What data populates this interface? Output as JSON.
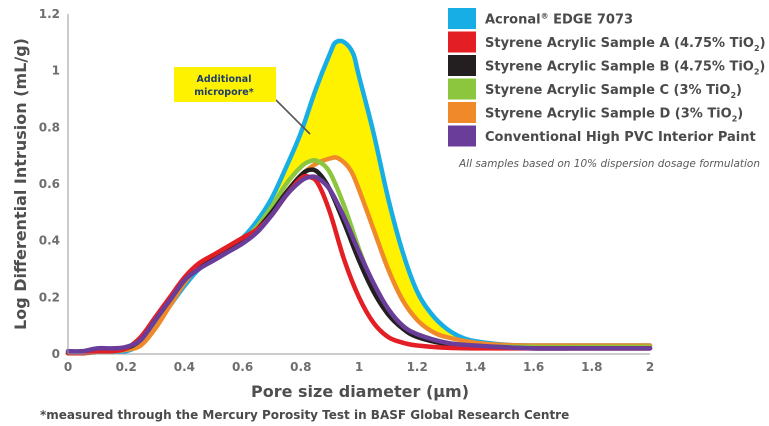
{
  "chart_data": {
    "type": "line",
    "ylabel": "Log Differential Intrusion (mL/g)",
    "xlabel": "Pore size diameter (µm)",
    "xlim": [
      0,
      2
    ],
    "ylim": [
      0,
      1.2
    ],
    "xticks": [
      0,
      0.2,
      0.4,
      0.6,
      0.8,
      1,
      1.2,
      1.4,
      1.6,
      1.8,
      2
    ],
    "yticks": [
      0,
      0.2,
      0.4,
      0.6,
      0.8,
      1,
      1.2
    ],
    "xtick_labels": [
      "0",
      "0.2",
      "0.4",
      "0.6",
      "0.8",
      "1",
      "1.2",
      "1.4",
      "1.6",
      "1.8",
      "2"
    ],
    "ytick_labels": [
      "0",
      "0.2",
      "0.4",
      "0.6",
      "0.8",
      "1",
      "1.2"
    ],
    "grid": false,
    "legend_position": "top-right",
    "filled_region": {
      "between": [
        "Acronal® EDGE 7073",
        "Conventional High PVC Interior Paint"
      ],
      "color": "#fff200"
    },
    "series": [
      {
        "name": "Acronal® EDGE 7073",
        "legend_main": "Acronal",
        "legend_reg": "®",
        "legend_rest": " EDGE 7073",
        "color": "#17aee6",
        "x": [
          0,
          0.1,
          0.2,
          0.25,
          0.3,
          0.35,
          0.4,
          0.45,
          0.5,
          0.55,
          0.6,
          0.65,
          0.7,
          0.75,
          0.8,
          0.85,
          0.9,
          0.92,
          0.95,
          0.98,
          1.0,
          1.05,
          1.1,
          1.15,
          1.2,
          1.25,
          1.3,
          1.35,
          1.4,
          1.5,
          1.6,
          1.7,
          1.8,
          1.9,
          2.0
        ],
        "y": [
          0.003,
          0.006,
          0.01,
          0.04,
          0.1,
          0.17,
          0.24,
          0.3,
          0.34,
          0.37,
          0.41,
          0.47,
          0.55,
          0.66,
          0.78,
          0.93,
          1.06,
          1.1,
          1.1,
          1.06,
          0.98,
          0.78,
          0.55,
          0.36,
          0.22,
          0.14,
          0.09,
          0.06,
          0.045,
          0.033,
          0.03,
          0.03,
          0.03,
          0.03,
          0.03
        ]
      },
      {
        "name": "Styrene Acrylic Sample A (4.75% TiO₂)",
        "legend_main": "Styrene Acrylic Sample A (4.75% TiO",
        "legend_sub": "2",
        "legend_end": ")",
        "color": "#e31e24",
        "x": [
          0,
          0.05,
          0.1,
          0.15,
          0.2,
          0.25,
          0.3,
          0.35,
          0.4,
          0.45,
          0.5,
          0.55,
          0.6,
          0.65,
          0.7,
          0.75,
          0.8,
          0.83,
          0.86,
          0.9,
          0.95,
          1.0,
          1.05,
          1.1,
          1.15,
          1.2,
          1.3,
          1.4,
          1.6,
          1.8,
          2.0
        ],
        "y": [
          0.003,
          0.003,
          0.008,
          0.01,
          0.02,
          0.06,
          0.13,
          0.2,
          0.27,
          0.32,
          0.35,
          0.38,
          0.41,
          0.44,
          0.49,
          0.56,
          0.62,
          0.625,
          0.6,
          0.5,
          0.33,
          0.2,
          0.11,
          0.06,
          0.04,
          0.03,
          0.022,
          0.02,
          0.02,
          0.02,
          0.02
        ]
      },
      {
        "name": "Styrene Acrylic Sample B (4.75% TiO₂)",
        "legend_main": "Styrene Acrylic Sample B (4.75% TiO",
        "legend_sub": "2",
        "legend_end": ")",
        "color": "#231f20",
        "x": [
          0,
          0.05,
          0.1,
          0.15,
          0.2,
          0.25,
          0.3,
          0.35,
          0.4,
          0.45,
          0.5,
          0.55,
          0.6,
          0.65,
          0.7,
          0.75,
          0.8,
          0.83,
          0.86,
          0.9,
          0.95,
          1.0,
          1.05,
          1.1,
          1.15,
          1.2,
          1.3,
          1.4,
          1.6,
          1.8,
          2.0
        ],
        "y": [
          0.003,
          0.003,
          0.008,
          0.01,
          0.02,
          0.05,
          0.12,
          0.19,
          0.26,
          0.31,
          0.34,
          0.37,
          0.4,
          0.44,
          0.5,
          0.57,
          0.63,
          0.65,
          0.64,
          0.58,
          0.46,
          0.33,
          0.22,
          0.14,
          0.09,
          0.06,
          0.035,
          0.025,
          0.02,
          0.02,
          0.02
        ]
      },
      {
        "name": "Styrene Acrylic Sample C (3% TiO₂)",
        "legend_main": "Styrene Acrylic Sample C (3% TiO",
        "legend_sub": "2",
        "legend_end": ")",
        "color": "#8cc63f",
        "x": [
          0,
          0.05,
          0.1,
          0.15,
          0.2,
          0.25,
          0.3,
          0.35,
          0.4,
          0.45,
          0.5,
          0.55,
          0.6,
          0.65,
          0.7,
          0.75,
          0.8,
          0.83,
          0.86,
          0.9,
          0.95,
          1.0,
          1.05,
          1.1,
          1.15,
          1.2,
          1.3,
          1.4,
          1.6,
          1.8,
          2.0
        ],
        "y": [
          0.003,
          0.003,
          0.008,
          0.01,
          0.02,
          0.05,
          0.12,
          0.19,
          0.26,
          0.31,
          0.34,
          0.37,
          0.4,
          0.45,
          0.52,
          0.6,
          0.66,
          0.68,
          0.68,
          0.64,
          0.52,
          0.37,
          0.24,
          0.15,
          0.1,
          0.07,
          0.04,
          0.028,
          0.025,
          0.025,
          0.025
        ]
      },
      {
        "name": "Styrene Acrylic Sample D (3% TiO₂)",
        "legend_main": "Styrene Acrylic Sample D (3% TiO",
        "legend_sub": "2",
        "legend_end": ")",
        "color": "#f0892a",
        "x": [
          0,
          0.05,
          0.1,
          0.15,
          0.2,
          0.25,
          0.3,
          0.35,
          0.4,
          0.45,
          0.5,
          0.55,
          0.6,
          0.65,
          0.7,
          0.75,
          0.8,
          0.85,
          0.9,
          0.93,
          0.97,
          1.0,
          1.05,
          1.1,
          1.15,
          1.2,
          1.25,
          1.3,
          1.4,
          1.5,
          1.6,
          1.8,
          2.0
        ],
        "y": [
          0.003,
          0.003,
          0.006,
          0.01,
          0.015,
          0.03,
          0.09,
          0.17,
          0.25,
          0.31,
          0.34,
          0.37,
          0.4,
          0.44,
          0.5,
          0.57,
          0.63,
          0.67,
          0.69,
          0.69,
          0.65,
          0.58,
          0.44,
          0.3,
          0.19,
          0.12,
          0.08,
          0.06,
          0.04,
          0.032,
          0.03,
          0.03,
          0.03
        ]
      },
      {
        "name": "Conventional High PVC Interior Paint",
        "legend_main": "Conventional High PVC Interior Paint",
        "color": "#6a3d9a",
        "x": [
          0,
          0.05,
          0.1,
          0.15,
          0.2,
          0.25,
          0.3,
          0.35,
          0.4,
          0.45,
          0.5,
          0.55,
          0.6,
          0.65,
          0.7,
          0.75,
          0.8,
          0.83,
          0.86,
          0.9,
          0.95,
          1.0,
          1.05,
          1.1,
          1.15,
          1.2,
          1.3,
          1.4,
          1.6,
          1.8,
          2.0
        ],
        "y": [
          0.01,
          0.01,
          0.02,
          0.02,
          0.025,
          0.05,
          0.12,
          0.19,
          0.26,
          0.3,
          0.33,
          0.36,
          0.39,
          0.43,
          0.49,
          0.56,
          0.61,
          0.625,
          0.62,
          0.58,
          0.48,
          0.36,
          0.25,
          0.16,
          0.1,
          0.07,
          0.04,
          0.03,
          0.02,
          0.02,
          0.02
        ]
      }
    ],
    "annotations": {
      "callout_line1": "Additional",
      "callout_line2": "micropore*",
      "note": "All samples based on 10% dispersion dosage formulation",
      "footnote": "*measured through the Mercury Porosity Test in BASF Global Research Centre"
    }
  }
}
